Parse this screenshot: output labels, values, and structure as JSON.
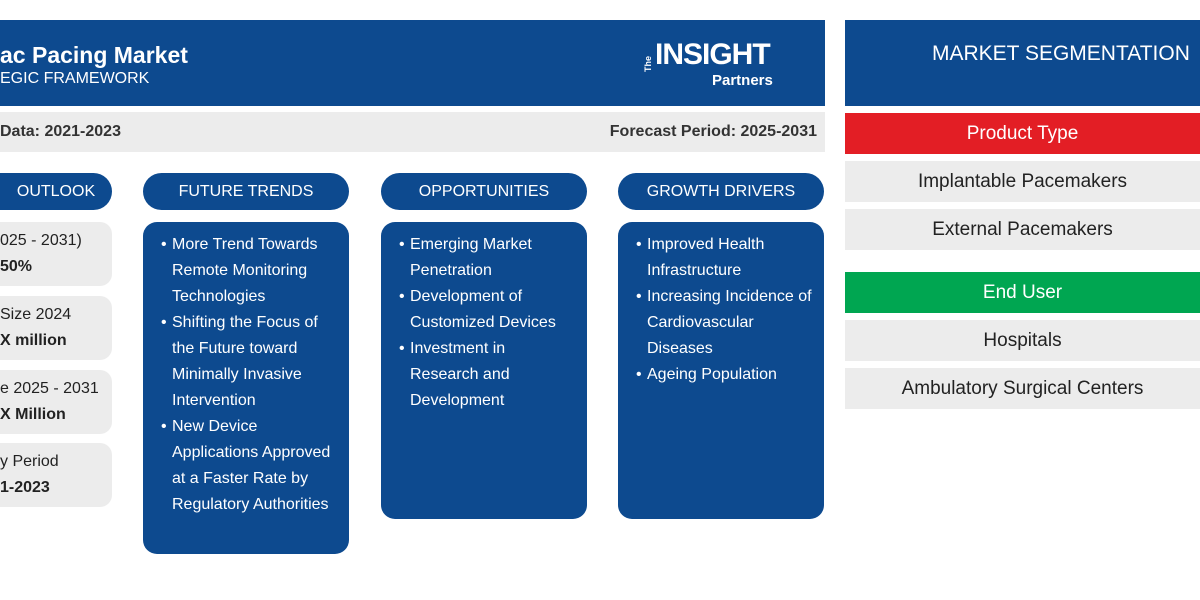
{
  "header": {
    "title": "ac Pacing Market",
    "subtitle": "EGIC FRAMEWORK",
    "logo": {
      "the": "The",
      "insight": "INSIGHT",
      "partners": "Partners"
    }
  },
  "periods": {
    "historic": "Data: 2021-2023",
    "forecast": "Forecast Period: 2025-2031"
  },
  "outlook": {
    "heading": "OUTLOOK",
    "cards": [
      [
        "025 - 2031)",
        "50%"
      ],
      [
        "Size 2024",
        "X million"
      ],
      [
        "e 2025 - 2031",
        "X Million"
      ],
      [
        "y Period",
        "1-2023"
      ]
    ]
  },
  "columns": [
    {
      "heading": "FUTURE TRENDS",
      "items": [
        "More Trend Towards Remote Monitoring Technologies",
        "Shifting the Focus of the Future toward Minimally Invasive Intervention",
        "New Device Applications Approved at a Faster Rate by Regulatory Authorities"
      ]
    },
    {
      "heading": "OPPORTUNITIES",
      "items": [
        "Emerging Market Penetration",
        "Development of Customized Devices",
        "Investment in Research and Development"
      ]
    },
    {
      "heading": "GROWTH DRIVERS",
      "items": [
        "Improved Health Infrastructure",
        "Increasing Incidence of Cardiovascular Diseases",
        "Ageing Population"
      ]
    }
  ],
  "segmentation": {
    "title": "MARKET SEGMENTATION",
    "groups": [
      {
        "name": "Product Type",
        "items": [
          "Implantable Pacemakers",
          "External Pacemakers"
        ]
      },
      {
        "name": "End User",
        "items": [
          "Hospitals",
          "Ambulatory Surgical Centers"
        ]
      }
    ]
  }
}
